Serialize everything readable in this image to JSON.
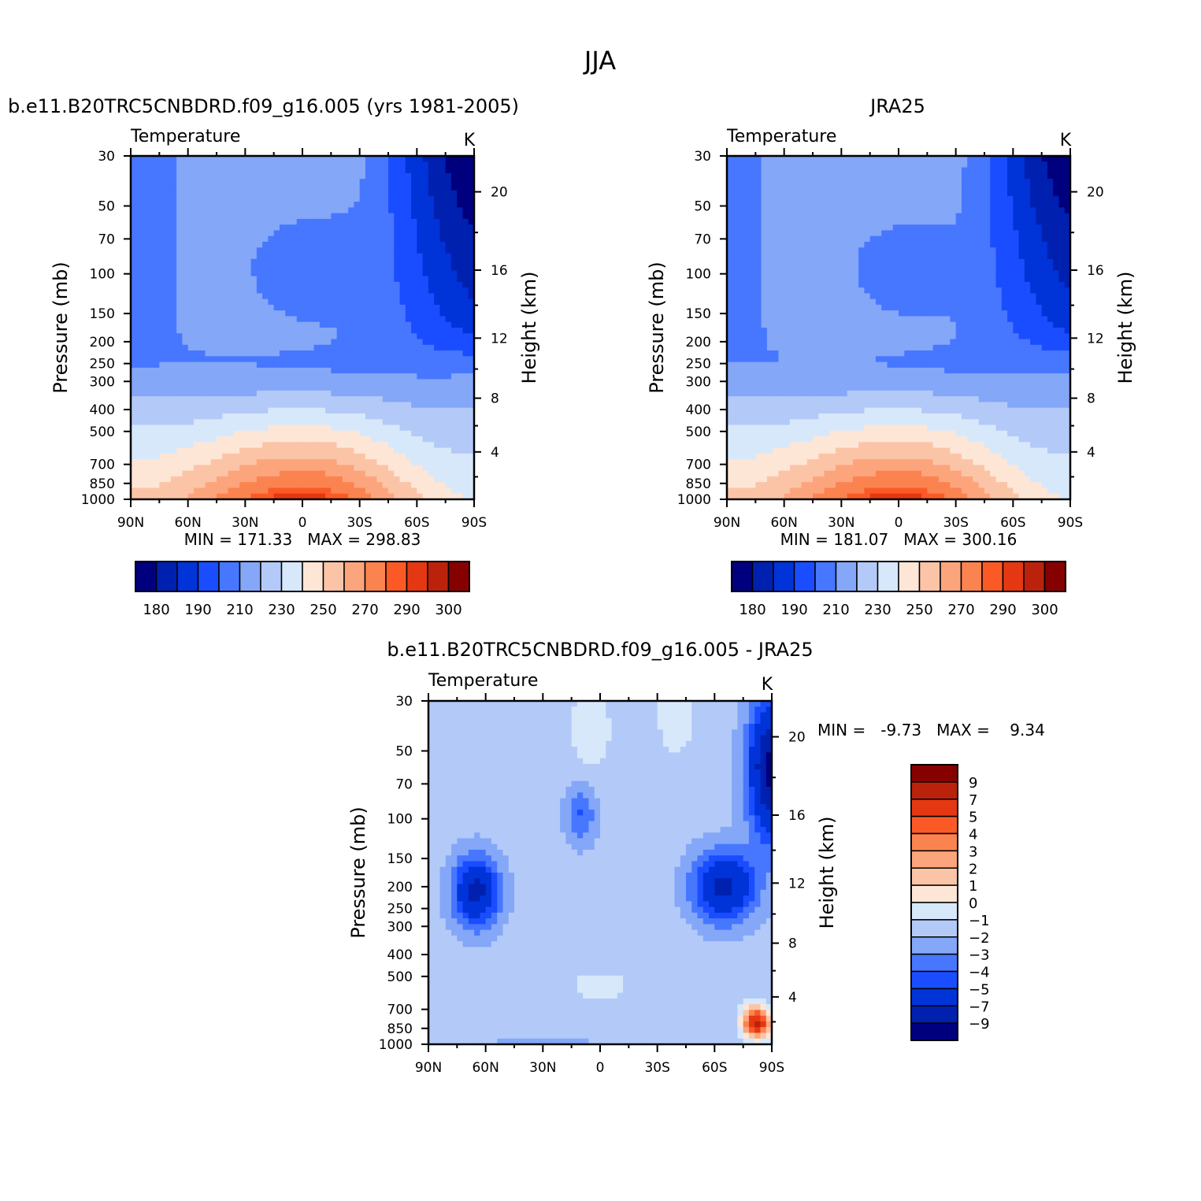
{
  "figure": {
    "title": "JJA",
    "colors": {
      "blues": [
        "#00007f",
        "#0020b0",
        "#0033d8",
        "#1a4dff",
        "#4777ff",
        "#84a7f8",
        "#b3caf8",
        "#d7e8fb"
      ],
      "reds": [
        "#fde6d6",
        "#fcc4a6",
        "#fca57c",
        "#fb8350",
        "#fb5a26",
        "#e53812",
        "#ba220c",
        "#870000"
      ]
    }
  },
  "chart_data": [
    {
      "type": "heatmap",
      "id": "model",
      "title": "b.e11.B20TRC5CNBDRD.f09_g16.005 (yrs 1981-2005)",
      "left_label": "Temperature",
      "right_label": "K",
      "xlabel": "",
      "ylabel": "Pressure (mb)",
      "ylabel_right": "Height (km)",
      "x_ticks": [
        "90N",
        "60N",
        "30N",
        "0",
        "30S",
        "60S",
        "90S"
      ],
      "x_range": [
        90,
        -90
      ],
      "y_ticks": [
        "30",
        "50",
        "70",
        "100",
        "150",
        "200",
        "250",
        "300",
        "400",
        "500",
        "700",
        "850",
        "1000"
      ],
      "y_range": [
        30,
        1000
      ],
      "y_scale": "log",
      "height_ticks": [
        "4",
        "8",
        "12",
        "16",
        "20"
      ],
      "min_max": "MIN = 171.33   MAX = 298.83",
      "colorbar_labels": [
        "180",
        "190",
        "210",
        "230",
        "250",
        "270",
        "290",
        "300"
      ],
      "levels": [
        180,
        190,
        200,
        210,
        220,
        230,
        240,
        250,
        260,
        270,
        280,
        290,
        295,
        300,
        305
      ]
    },
    {
      "type": "heatmap",
      "id": "obs",
      "title": "JRA25",
      "left_label": "Temperature",
      "right_label": "K",
      "xlabel": "",
      "ylabel": "Pressure (mb)",
      "ylabel_right": "Height (km)",
      "x_ticks": [
        "90N",
        "60N",
        "30N",
        "0",
        "30S",
        "60S",
        "90S"
      ],
      "x_range": [
        90,
        -90
      ],
      "y_ticks": [
        "30",
        "50",
        "70",
        "100",
        "150",
        "200",
        "250",
        "300",
        "400",
        "500",
        "700",
        "850",
        "1000"
      ],
      "y_range": [
        30,
        1000
      ],
      "y_scale": "log",
      "height_ticks": [
        "4",
        "8",
        "12",
        "16",
        "20"
      ],
      "min_max": "MIN = 181.07   MAX = 300.16",
      "colorbar_labels": [
        "180",
        "190",
        "210",
        "230",
        "250",
        "270",
        "290",
        "300"
      ],
      "levels": [
        180,
        190,
        200,
        210,
        220,
        230,
        240,
        250,
        260,
        270,
        280,
        290,
        295,
        300,
        305
      ]
    },
    {
      "type": "heatmap",
      "id": "diff",
      "title": "b.e11.B20TRC5CNBDRD.f09_g16.005 - JRA25",
      "left_label": "Temperature",
      "right_label": "K",
      "xlabel": "",
      "ylabel": "Pressure (mb)",
      "ylabel_right": "Height (km)",
      "x_ticks": [
        "90N",
        "60N",
        "30N",
        "0",
        "30S",
        "60S",
        "90S"
      ],
      "x_range": [
        90,
        -90
      ],
      "y_ticks": [
        "30",
        "50",
        "70",
        "100",
        "150",
        "200",
        "250",
        "300",
        "400",
        "500",
        "700",
        "850",
        "1000"
      ],
      "y_range": [
        30,
        1000
      ],
      "y_scale": "log",
      "height_ticks": [
        "4",
        "8",
        "12",
        "16",
        "20"
      ],
      "min_max": "MIN =   -9.73   MAX =    9.34",
      "colorbar_labels": [
        "9",
        "7",
        "5",
        "4",
        "3",
        "2",
        "1",
        "0",
        "-1",
        "-2",
        "-3",
        "-4",
        "-5",
        "-7",
        "-9"
      ],
      "levels": [
        -9,
        -7,
        -5,
        -4,
        -3,
        -2,
        -1,
        0,
        1,
        2,
        3,
        4,
        5,
        7,
        9
      ]
    }
  ]
}
